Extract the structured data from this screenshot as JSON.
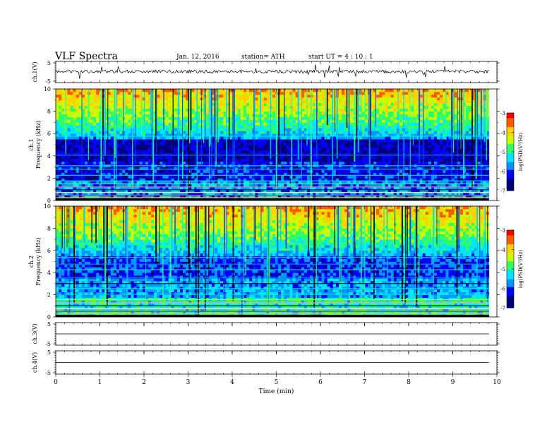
{
  "header": {
    "title": "VLF  Spectra",
    "date": "Jan. 12, 2016",
    "station": "station= ATH",
    "start": "start  UT  =   4  : 10 : 1"
  },
  "chart_data": {
    "type": "heatmap",
    "xlabel": "Time  (min)",
    "x_ticks": [
      "0",
      "1",
      "2",
      "3",
      "4",
      "5",
      "6",
      "7",
      "8",
      "9",
      "10"
    ],
    "xlim": [
      0,
      10
    ],
    "data_end_min": 9.82,
    "panels": [
      {
        "id": "ch1-wave",
        "ylabel": "ch.1(V)",
        "y_ticks": [
          "5",
          "-5"
        ],
        "ylim": [
          -5,
          5
        ],
        "trace_level_v": 0.2
      },
      {
        "id": "ch1-spec",
        "ylabel_lines": [
          "ch.1",
          "Frequency  (kHz)"
        ],
        "y_ticks": [
          "0",
          "2",
          "4",
          "6",
          "8",
          "10"
        ],
        "ylim": [
          0,
          10
        ],
        "colorbar": {
          "label": "log(PSD(V²/Hz)",
          "ticks": [
            "-3",
            "-4",
            "-5",
            "-6",
            "-7"
          ],
          "range": [
            -7,
            -3
          ]
        }
      },
      {
        "id": "ch2-spec",
        "ylabel_lines": [
          "ch.2",
          "Frequency  (kHz)"
        ],
        "y_ticks": [
          "0",
          "2",
          "4",
          "6",
          "8",
          "10"
        ],
        "ylim": [
          0,
          10
        ],
        "colorbar": {
          "label": "log(PSD(V²/Hz)",
          "ticks": [
            "-3",
            "-4",
            "-5",
            "-6",
            "-7"
          ],
          "range": [
            -7,
            -3
          ]
        }
      },
      {
        "id": "ch3-wave",
        "ylabel": "ch.3(V)",
        "y_ticks": [
          "5",
          "-5"
        ],
        "ylim": [
          -5,
          5
        ],
        "trace_level_v": 0
      },
      {
        "id": "ch4-wave",
        "ylabel": "ch.4(V)",
        "y_ticks": [
          "5",
          "-5"
        ],
        "ylim": [
          -5,
          5
        ],
        "trace_level_v": 0
      }
    ],
    "colors": [
      "#00007a",
      "#0000ff",
      "#0096ff",
      "#00e6ff",
      "#32ff64",
      "#c8ff00",
      "#ffd200",
      "#ff5a00",
      "#ff0000"
    ]
  }
}
